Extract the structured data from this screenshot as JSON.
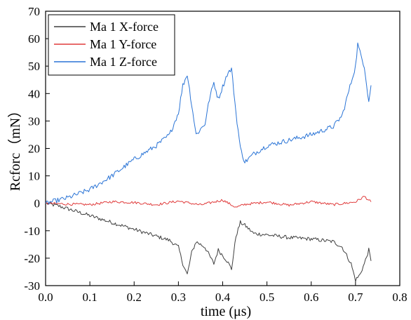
{
  "chart_data": {
    "type": "line",
    "xlabel": "time (μs)",
    "ylabel": "Rcforc（mN）",
    "xlim": [
      0.0,
      0.8
    ],
    "ylim": [
      -30,
      70
    ],
    "x_ticks": [
      "0.0",
      "0.1",
      "0.2",
      "0.3",
      "0.4",
      "0.5",
      "0.6",
      "0.7",
      "0.8"
    ],
    "y_ticks": [
      "-30",
      "-20",
      "-10",
      "0",
      "10",
      "20",
      "30",
      "40",
      "50",
      "60",
      "70"
    ],
    "grid": false,
    "legend_position": "top-left",
    "series": [
      {
        "name": "Ma 1 X-force",
        "color": "#3f3f3f",
        "points": [
          [
            0.0,
            0
          ],
          [
            0.03,
            -1
          ],
          [
            0.06,
            -2.5
          ],
          [
            0.1,
            -4.5
          ],
          [
            0.15,
            -7
          ],
          [
            0.2,
            -9.5
          ],
          [
            0.25,
            -12
          ],
          [
            0.28,
            -13.5
          ],
          [
            0.3,
            -16
          ],
          [
            0.31,
            -22
          ],
          [
            0.32,
            -26
          ],
          [
            0.33,
            -18
          ],
          [
            0.34,
            -14
          ],
          [
            0.36,
            -16
          ],
          [
            0.37,
            -19
          ],
          [
            0.38,
            -22
          ],
          [
            0.39,
            -17
          ],
          [
            0.41,
            -21
          ],
          [
            0.42,
            -24
          ],
          [
            0.43,
            -12
          ],
          [
            0.44,
            -7
          ],
          [
            0.45,
            -8
          ],
          [
            0.47,
            -11
          ],
          [
            0.5,
            -11.5
          ],
          [
            0.55,
            -12.5
          ],
          [
            0.6,
            -13
          ],
          [
            0.65,
            -14
          ],
          [
            0.67,
            -16
          ],
          [
            0.69,
            -22
          ],
          [
            0.7,
            -28
          ],
          [
            0.71,
            -26
          ],
          [
            0.72,
            -22
          ],
          [
            0.73,
            -17
          ],
          [
            0.735,
            -21
          ]
        ]
      },
      {
        "name": "Ma 1 Y-force",
        "color": "#e03c3c",
        "points": [
          [
            0.0,
            0
          ],
          [
            0.05,
            -0.3
          ],
          [
            0.1,
            -0.5
          ],
          [
            0.15,
            0.6
          ],
          [
            0.2,
            0.3
          ],
          [
            0.25,
            -0.5
          ],
          [
            0.3,
            0.8
          ],
          [
            0.35,
            -0.6
          ],
          [
            0.4,
            1.2
          ],
          [
            0.43,
            -1.5
          ],
          [
            0.45,
            -0.4
          ],
          [
            0.5,
            0.5
          ],
          [
            0.55,
            -0.7
          ],
          [
            0.6,
            0.6
          ],
          [
            0.65,
            -0.5
          ],
          [
            0.7,
            0.5
          ],
          [
            0.72,
            2.5
          ],
          [
            0.735,
            0.5
          ]
        ]
      },
      {
        "name": "Ma 1 Z-force",
        "color": "#2a74d6",
        "points": [
          [
            0.0,
            0
          ],
          [
            0.05,
            2
          ],
          [
            0.1,
            5
          ],
          [
            0.15,
            10
          ],
          [
            0.2,
            16
          ],
          [
            0.25,
            21
          ],
          [
            0.28,
            25
          ],
          [
            0.3,
            33
          ],
          [
            0.31,
            43
          ],
          [
            0.32,
            47
          ],
          [
            0.33,
            36
          ],
          [
            0.34,
            25
          ],
          [
            0.36,
            29
          ],
          [
            0.37,
            38
          ],
          [
            0.38,
            44
          ],
          [
            0.39,
            38
          ],
          [
            0.41,
            47
          ],
          [
            0.42,
            49
          ],
          [
            0.43,
            33
          ],
          [
            0.44,
            20
          ],
          [
            0.45,
            15
          ],
          [
            0.47,
            18
          ],
          [
            0.5,
            21
          ],
          [
            0.55,
            23
          ],
          [
            0.6,
            25
          ],
          [
            0.65,
            28
          ],
          [
            0.67,
            32
          ],
          [
            0.69,
            44
          ],
          [
            0.7,
            50
          ],
          [
            0.705,
            58
          ],
          [
            0.71,
            55
          ],
          [
            0.72,
            50
          ],
          [
            0.73,
            37
          ],
          [
            0.735,
            43
          ]
        ]
      }
    ]
  }
}
